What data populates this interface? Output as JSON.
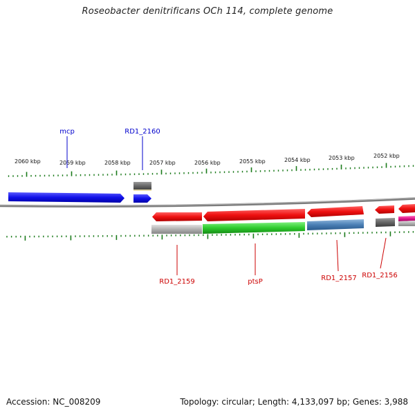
{
  "title": "Roseobacter denitrificans OCh 114, complete genome",
  "footer": {
    "accession": "Accession: NC_008209",
    "topology": "Topology: circular; Length: 4,133,097 bp; Genes: 3,988"
  },
  "scale_labels": [
    "2060 kbp",
    "2059 kbp",
    "2058 kbp",
    "2057 kbp",
    "2056 kbp",
    "2055 kbp",
    "2054 kbp",
    "2053 kbp",
    "2052 kbp"
  ],
  "gene_labels": {
    "mcp": "mcp",
    "rd1_2160": "RD1_2160",
    "rd1_2159": "RD1_2159",
    "ptsp": "ptsP",
    "rd1_2157": "RD1_2157",
    "rd1_2156": "RD1_2156"
  },
  "colors": {
    "forward_label": "#0000cc",
    "reverse_label": "#cc0000",
    "tick": "#1a7a1a",
    "backbone": "#808080",
    "blue_gene": "#1414e6",
    "red_gene": "#ee1010",
    "green_gene": "#2ecc2e",
    "gray_gene": "#6e6e6e",
    "steel_gene": "#4a7fb5",
    "silver_gene": "#b4b4b4",
    "magenta_gene": "#e0178c"
  }
}
